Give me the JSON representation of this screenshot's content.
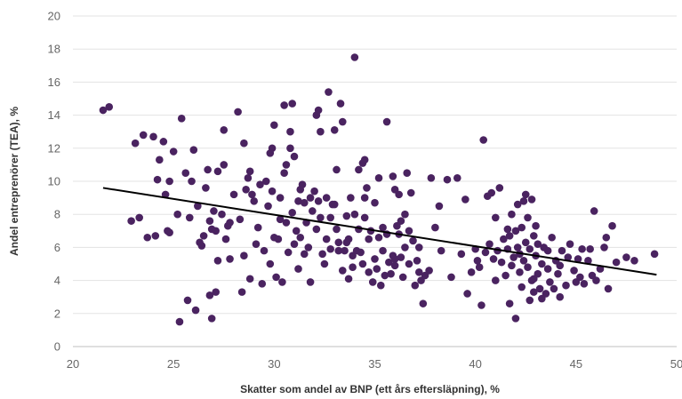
{
  "chart_data": {
    "type": "scatter",
    "xlabel": "Skatter som andel av BNP (ett års eftersläpning), %",
    "ylabel": "Andel entreprenörer (TEA), %",
    "xlim": [
      20,
      50
    ],
    "ylim": [
      0,
      20
    ],
    "x_ticks": [
      "20",
      "25",
      "30",
      "35",
      "40",
      "45",
      "50"
    ],
    "y_ticks": [
      "0",
      "2",
      "4",
      "6",
      "8",
      "10",
      "12",
      "14",
      "16",
      "18",
      "20"
    ],
    "grid": "horizontal",
    "colors": {
      "points": "#4a2360",
      "trendline": "#000000",
      "grid": "#e3e3e3"
    },
    "trendline": {
      "x": [
        21.5,
        49.0
      ],
      "y": [
        9.6,
        4.35
      ]
    },
    "points": [
      [
        21.5,
        14.3
      ],
      [
        21.8,
        14.5
      ],
      [
        22.9,
        7.6
      ],
      [
        23.1,
        12.3
      ],
      [
        23.3,
        7.8
      ],
      [
        23.5,
        12.8
      ],
      [
        23.7,
        6.6
      ],
      [
        24.0,
        12.7
      ],
      [
        24.1,
        6.7
      ],
      [
        24.3,
        11.3
      ],
      [
        24.5,
        12.4
      ],
      [
        24.6,
        9.2
      ],
      [
        24.7,
        7.0
      ],
      [
        24.8,
        10.0
      ],
      [
        24.8,
        6.9
      ],
      [
        25.0,
        11.8
      ],
      [
        25.2,
        8.0
      ],
      [
        25.3,
        1.5
      ],
      [
        25.4,
        13.8
      ],
      [
        25.6,
        10.5
      ],
      [
        25.7,
        2.8
      ],
      [
        25.8,
        7.8
      ],
      [
        25.9,
        10.0
      ],
      [
        26.0,
        11.9
      ],
      [
        26.1,
        2.2
      ],
      [
        26.3,
        6.3
      ],
      [
        26.4,
        6.1
      ],
      [
        26.5,
        6.7
      ],
      [
        26.6,
        9.6
      ],
      [
        26.7,
        10.7
      ],
      [
        26.8,
        7.6
      ],
      [
        26.8,
        3.1
      ],
      [
        26.9,
        1.7
      ],
      [
        26.9,
        7.1
      ],
      [
        27.0,
        8.2
      ],
      [
        27.1,
        3.3
      ],
      [
        27.1,
        7.0
      ],
      [
        27.2,
        5.2
      ],
      [
        27.2,
        10.6
      ],
      [
        27.4,
        8.0
      ],
      [
        27.5,
        13.1
      ],
      [
        27.6,
        6.5
      ],
      [
        27.7,
        7.3
      ],
      [
        27.8,
        7.5
      ],
      [
        27.8,
        5.3
      ],
      [
        28.0,
        9.2
      ],
      [
        28.2,
        14.2
      ],
      [
        28.3,
        7.7
      ],
      [
        28.4,
        3.3
      ],
      [
        28.5,
        5.5
      ],
      [
        28.6,
        9.5
      ],
      [
        28.7,
        10.2
      ],
      [
        28.8,
        4.1
      ],
      [
        28.9,
        9.2
      ],
      [
        29.0,
        8.8
      ],
      [
        29.1,
        6.2
      ],
      [
        29.2,
        7.2
      ],
      [
        29.3,
        9.8
      ],
      [
        29.4,
        3.8
      ],
      [
        29.6,
        10.0
      ],
      [
        29.7,
        8.5
      ],
      [
        29.8,
        5.0
      ],
      [
        29.8,
        11.7
      ],
      [
        29.9,
        12.0
      ],
      [
        29.9,
        9.4
      ],
      [
        30.0,
        13.4
      ],
      [
        30.0,
        6.6
      ],
      [
        30.1,
        4.2
      ],
      [
        30.2,
        6.5
      ],
      [
        30.3,
        9.0
      ],
      [
        30.4,
        3.9
      ],
      [
        30.5,
        10.5
      ],
      [
        30.5,
        14.6
      ],
      [
        30.6,
        11.0
      ],
      [
        30.6,
        7.5
      ],
      [
        30.7,
        5.7
      ],
      [
        30.8,
        12.0
      ],
      [
        30.8,
        13.0
      ],
      [
        30.9,
        8.1
      ],
      [
        30.9,
        14.7
      ],
      [
        31.0,
        11.5
      ],
      [
        31.0,
        6.2
      ],
      [
        31.1,
        7.0
      ],
      [
        31.2,
        8.8
      ],
      [
        31.2,
        4.7
      ],
      [
        31.3,
        9.5
      ],
      [
        31.3,
        6.6
      ],
      [
        31.4,
        9.8
      ],
      [
        31.5,
        8.7
      ],
      [
        31.5,
        5.6
      ],
      [
        31.6,
        7.5
      ],
      [
        31.7,
        6.0
      ],
      [
        31.8,
        3.9
      ],
      [
        31.9,
        8.2
      ],
      [
        32.0,
        9.4
      ],
      [
        32.1,
        7.1
      ],
      [
        32.1,
        14.0
      ],
      [
        32.2,
        14.3
      ],
      [
        32.2,
        8.8
      ],
      [
        32.3,
        7.8
      ],
      [
        32.3,
        13.0
      ],
      [
        32.4,
        5.6
      ],
      [
        32.5,
        5.0
      ],
      [
        32.6,
        9.0
      ],
      [
        32.6,
        6.5
      ],
      [
        32.7,
        15.4
      ],
      [
        32.8,
        7.8
      ],
      [
        32.8,
        5.9
      ],
      [
        32.9,
        8.6
      ],
      [
        33.0,
        13.1
      ],
      [
        33.1,
        10.7
      ],
      [
        33.1,
        7.1
      ],
      [
        33.2,
        6.3
      ],
      [
        33.2,
        5.8
      ],
      [
        33.3,
        14.7
      ],
      [
        33.4,
        13.6
      ],
      [
        33.4,
        4.6
      ],
      [
        33.5,
        5.8
      ],
      [
        33.6,
        6.3
      ],
      [
        33.6,
        7.9
      ],
      [
        33.7,
        6.5
      ],
      [
        33.7,
        4.1
      ],
      [
        33.8,
        9.0
      ],
      [
        33.9,
        5.5
      ],
      [
        33.9,
        4.8
      ],
      [
        34.0,
        8.0
      ],
      [
        34.0,
        17.5
      ],
      [
        34.1,
        5.8
      ],
      [
        34.2,
        7.1
      ],
      [
        34.2,
        10.7
      ],
      [
        34.3,
        5.7
      ],
      [
        34.4,
        11.1
      ],
      [
        34.4,
        5.0
      ],
      [
        34.5,
        7.8
      ],
      [
        34.5,
        11.3
      ],
      [
        34.6,
        9.6
      ],
      [
        34.7,
        6.5
      ],
      [
        34.7,
        4.5
      ],
      [
        34.8,
        7.0
      ],
      [
        34.9,
        3.9
      ],
      [
        35.0,
        5.3
      ],
      [
        35.0,
        8.7
      ],
      [
        35.1,
        4.7
      ],
      [
        35.2,
        10.2
      ],
      [
        35.2,
        6.6
      ],
      [
        35.3,
        3.7
      ],
      [
        35.4,
        5.8
      ],
      [
        35.4,
        7.2
      ],
      [
        35.5,
        4.3
      ],
      [
        35.6,
        13.6
      ],
      [
        35.6,
        6.8
      ],
      [
        35.7,
        5.1
      ],
      [
        35.8,
        4.4
      ],
      [
        35.9,
        5.5
      ],
      [
        35.9,
        10.3
      ],
      [
        36.0,
        4.9
      ],
      [
        36.0,
        5.3
      ],
      [
        36.1,
        7.3
      ],
      [
        36.2,
        6.8
      ],
      [
        36.2,
        9.2
      ],
      [
        36.3,
        5.4
      ],
      [
        36.3,
        7.6
      ],
      [
        36.4,
        4.2
      ],
      [
        36.5,
        6.0
      ],
      [
        36.5,
        8.0
      ],
      [
        36.6,
        10.5
      ],
      [
        36.7,
        7.0
      ],
      [
        36.7,
        5.0
      ],
      [
        36.8,
        9.3
      ],
      [
        36.9,
        6.4
      ],
      [
        37.0,
        3.7
      ],
      [
        37.1,
        5.2
      ],
      [
        37.2,
        4.5
      ],
      [
        37.3,
        4.0
      ],
      [
        37.4,
        2.6
      ],
      [
        37.5,
        4.3
      ],
      [
        37.7,
        4.6
      ],
      [
        37.8,
        10.2
      ],
      [
        38.0,
        7.2
      ],
      [
        38.3,
        5.8
      ],
      [
        38.6,
        10.1
      ],
      [
        38.8,
        4.2
      ],
      [
        39.1,
        10.2
      ],
      [
        39.3,
        5.6
      ],
      [
        39.6,
        3.2
      ],
      [
        39.8,
        4.5
      ],
      [
        40.0,
        5.9
      ],
      [
        40.1,
        5.2
      ],
      [
        40.3,
        2.5
      ],
      [
        40.4,
        12.5
      ],
      [
        40.5,
        5.7
      ],
      [
        40.6,
        9.1
      ],
      [
        40.7,
        6.2
      ],
      [
        40.8,
        9.3
      ],
      [
        40.9,
        5.3
      ],
      [
        41.0,
        7.8
      ],
      [
        41.0,
        4.0
      ],
      [
        41.1,
        5.8
      ],
      [
        41.2,
        9.6
      ],
      [
        41.3,
        5.1
      ],
      [
        41.4,
        6.5
      ],
      [
        41.5,
        4.3
      ],
      [
        41.6,
        5.9
      ],
      [
        41.7,
        6.7
      ],
      [
        41.7,
        2.6
      ],
      [
        41.8,
        8.0
      ],
      [
        41.8,
        4.9
      ],
      [
        41.9,
        5.4
      ],
      [
        42.0,
        7.0
      ],
      [
        42.0,
        1.7
      ],
      [
        42.1,
        6.0
      ],
      [
        42.1,
        8.6
      ],
      [
        42.2,
        5.6
      ],
      [
        42.2,
        4.5
      ],
      [
        42.3,
        7.2
      ],
      [
        42.3,
        3.6
      ],
      [
        42.4,
        8.8
      ],
      [
        42.4,
        5.2
      ],
      [
        42.5,
        9.2
      ],
      [
        42.5,
        6.3
      ],
      [
        42.6,
        4.8
      ],
      [
        42.6,
        7.8
      ],
      [
        42.7,
        2.8
      ],
      [
        42.7,
        5.9
      ],
      [
        42.8,
        8.9
      ],
      [
        42.8,
        4.0
      ],
      [
        42.9,
        6.7
      ],
      [
        42.9,
        3.3
      ],
      [
        43.0,
        5.5
      ],
      [
        43.0,
        7.3
      ],
      [
        43.1,
        4.4
      ],
      [
        43.1,
        6.2
      ],
      [
        43.2,
        3.5
      ],
      [
        43.3,
        5.0
      ],
      [
        43.3,
        2.9
      ],
      [
        43.4,
        6.0
      ],
      [
        43.5,
        3.2
      ],
      [
        43.6,
        4.7
      ],
      [
        43.6,
        5.8
      ],
      [
        43.7,
        3.9
      ],
      [
        43.8,
        6.6
      ],
      [
        43.9,
        3.5
      ],
      [
        44.0,
        5.2
      ],
      [
        44.1,
        4.4
      ],
      [
        44.2,
        4.9
      ],
      [
        44.3,
        5.8
      ],
      [
        44.5,
        3.7
      ],
      [
        44.6,
        5.4
      ],
      [
        44.7,
        6.2
      ],
      [
        44.9,
        4.6
      ],
      [
        45.0,
        3.9
      ],
      [
        45.1,
        5.3
      ],
      [
        45.2,
        4.2
      ],
      [
        45.3,
        5.9
      ],
      [
        45.4,
        3.8
      ],
      [
        45.6,
        5.2
      ],
      [
        45.8,
        4.3
      ],
      [
        45.9,
        8.2
      ],
      [
        46.0,
        4.0
      ],
      [
        46.2,
        4.7
      ],
      [
        46.4,
        6.0
      ],
      [
        46.6,
        3.5
      ],
      [
        46.8,
        7.3
      ],
      [
        47.0,
        5.1
      ],
      [
        47.5,
        5.4
      ],
      [
        47.9,
        5.2
      ],
      [
        48.9,
        5.6
      ],
      [
        27.5,
        11.0
      ],
      [
        28.5,
        12.3
      ],
      [
        29.5,
        5.8
      ],
      [
        30.3,
        7.7
      ],
      [
        31.8,
        9.0
      ],
      [
        33.0,
        8.6
      ],
      [
        34.5,
        9.0
      ],
      [
        36.0,
        9.5
      ],
      [
        37.2,
        6.0
      ],
      [
        38.2,
        8.5
      ],
      [
        39.5,
        8.9
      ],
      [
        40.2,
        4.8
      ],
      [
        41.6,
        7.1
      ],
      [
        42.9,
        4.1
      ],
      [
        44.2,
        3.0
      ],
      [
        45.7,
        5.9
      ],
      [
        46.5,
        6.6
      ],
      [
        26.2,
        8.5
      ],
      [
        24.2,
        10.1
      ],
      [
        28.8,
        10.6
      ]
    ]
  }
}
